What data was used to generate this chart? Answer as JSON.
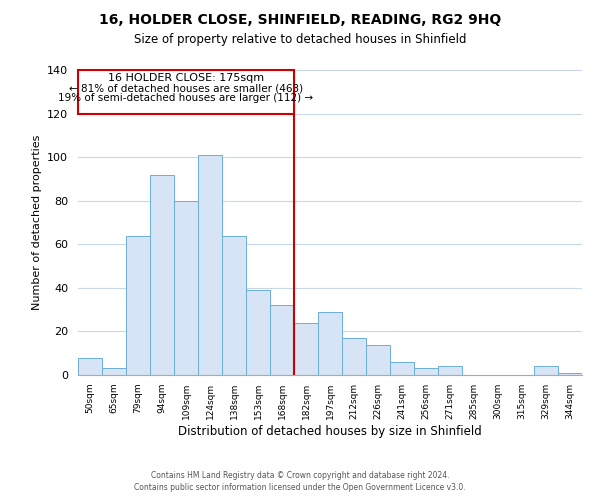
{
  "title": "16, HOLDER CLOSE, SHINFIELD, READING, RG2 9HQ",
  "subtitle": "Size of property relative to detached houses in Shinfield",
  "xlabel": "Distribution of detached houses by size in Shinfield",
  "ylabel": "Number of detached properties",
  "bar_labels": [
    "50sqm",
    "65sqm",
    "79sqm",
    "94sqm",
    "109sqm",
    "124sqm",
    "138sqm",
    "153sqm",
    "168sqm",
    "182sqm",
    "197sqm",
    "212sqm",
    "226sqm",
    "241sqm",
    "256sqm",
    "271sqm",
    "285sqm",
    "300sqm",
    "315sqm",
    "329sqm",
    "344sqm"
  ],
  "bar_values": [
    8,
    3,
    64,
    92,
    80,
    101,
    64,
    39,
    32,
    24,
    29,
    17,
    14,
    6,
    3,
    4,
    0,
    0,
    0,
    4,
    1
  ],
  "bar_color": "#d6e4f5",
  "bar_edge_color": "#6baed6",
  "vline_x_idx": 8.5,
  "vline_color": "#cc0000",
  "annotation_title": "16 HOLDER CLOSE: 175sqm",
  "annotation_line1": "← 81% of detached houses are smaller (463)",
  "annotation_line2": "19% of semi-detached houses are larger (112) →",
  "annotation_box_color": "#cc0000",
  "ylim": [
    0,
    140
  ],
  "yticks": [
    0,
    20,
    40,
    60,
    80,
    100,
    120,
    140
  ],
  "footer_line1": "Contains HM Land Registry data © Crown copyright and database right 2024.",
  "footer_line2": "Contains public sector information licensed under the Open Government Licence v3.0.",
  "background_color": "#ffffff",
  "grid_color": "#c8d8e8"
}
